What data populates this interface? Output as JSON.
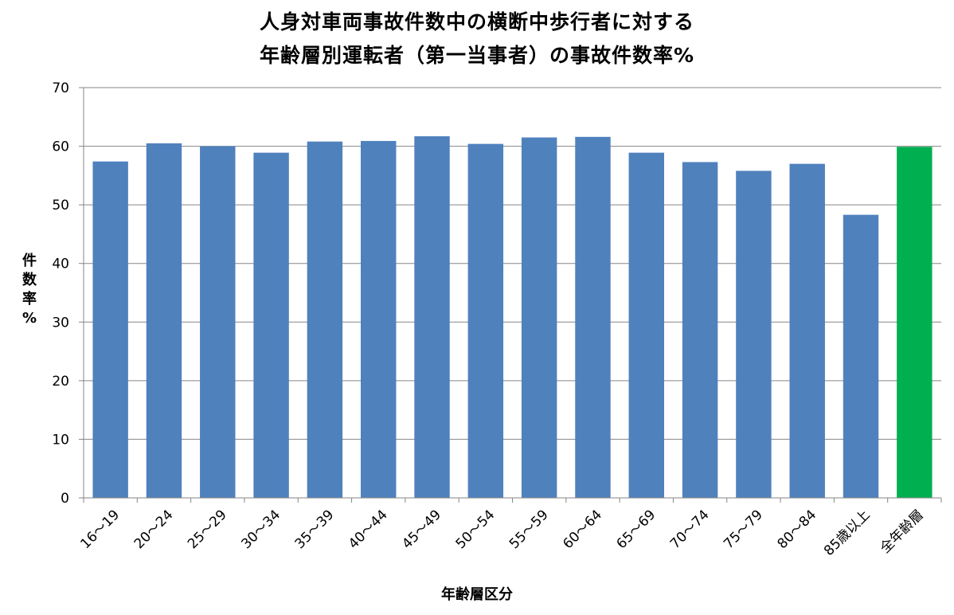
{
  "chart_data": {
    "type": "bar",
    "title_line1": "人身対車両事故件数中の横断中歩行者に対する",
    "title_line2": "年齢層別運転者（第一当事者）の事故件数率%",
    "ylabel": "件数率%",
    "xlabel": "年齢層区分",
    "ylim": [
      0,
      70
    ],
    "yticks": [
      "0",
      "10",
      "20",
      "30",
      "40",
      "50",
      "60",
      "70"
    ],
    "grid": true,
    "categories": [
      "16～19",
      "20～24",
      "25～29",
      "30～34",
      "35～39",
      "40～44",
      "45～49",
      "50～54",
      "55～59",
      "60～64",
      "65～69",
      "70～74",
      "75～79",
      "80～84",
      "85歳以上",
      "全年齢層"
    ],
    "values": [
      57.4,
      60.5,
      60.0,
      58.9,
      60.8,
      60.9,
      61.7,
      60.4,
      61.5,
      61.6,
      58.9,
      57.3,
      55.8,
      57.0,
      48.3,
      59.9
    ],
    "colors": [
      "#4f81bd",
      "#4f81bd",
      "#4f81bd",
      "#4f81bd",
      "#4f81bd",
      "#4f81bd",
      "#4f81bd",
      "#4f81bd",
      "#4f81bd",
      "#4f81bd",
      "#4f81bd",
      "#4f81bd",
      "#4f81bd",
      "#4f81bd",
      "#4f81bd",
      "#00b050"
    ]
  }
}
